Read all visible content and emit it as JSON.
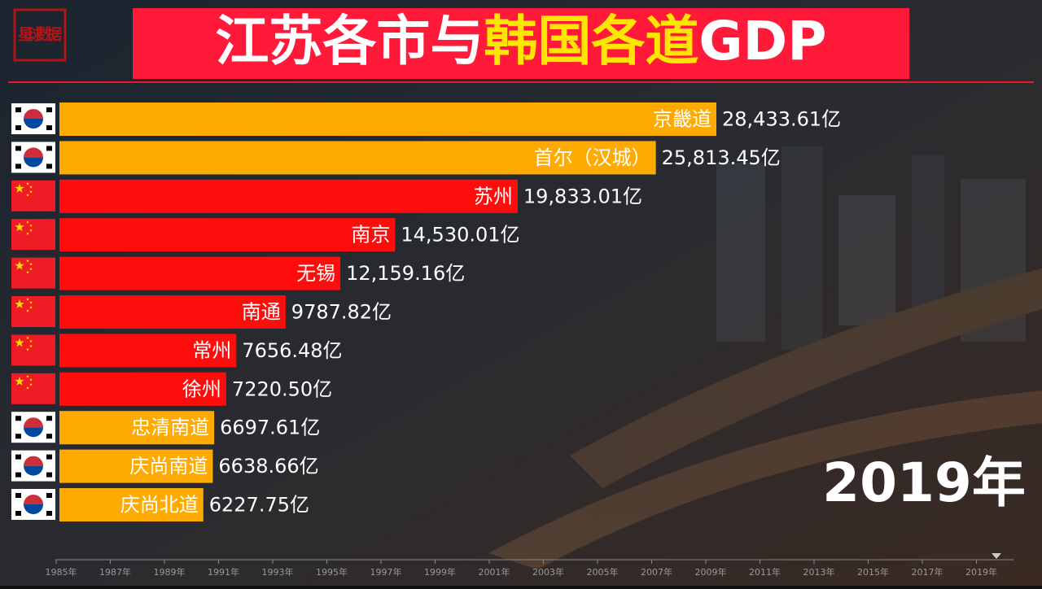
{
  "chart_data": {
    "type": "bar",
    "orientation": "horizontal",
    "title": [
      "江苏各市与",
      "韩国各道",
      "GDP"
    ],
    "title_colors": [
      "#ffffff",
      "#ffe600",
      "#ffffff"
    ],
    "logo": "星球数据",
    "categories": [
      "京畿道",
      "首尔（汉城）",
      "苏州",
      "南京",
      "无锡",
      "南通",
      "常州",
      "徐州",
      "忠清南道",
      "庆尚南道",
      "庆尚北道"
    ],
    "values": [
      28433.61,
      25813.45,
      19833.01,
      14530.01,
      12159.16,
      9787.82,
      7656.48,
      7220.5,
      6697.61,
      6638.66,
      6227.75
    ],
    "value_labels": [
      "28,433.61亿",
      "25,813.45亿",
      "19,833.01亿",
      "14,530.01亿",
      "12,159.16亿",
      "9787.82亿",
      "7656.48亿",
      "7220.50亿",
      "6697.61亿",
      "6638.66亿",
      "6227.75亿"
    ],
    "colors": [
      "#ffaa00",
      "#ffaa00",
      "#ff0d0d",
      "#ff0d0d",
      "#ff0d0d",
      "#ff0d0d",
      "#ff0d0d",
      "#ff0d0d",
      "#ffaa00",
      "#ffaa00",
      "#ffaa00"
    ],
    "xlim": [
      0,
      28433.61
    ],
    "annotation": "2019年",
    "timeline": [
      "1985年",
      "1987年",
      "1989年",
      "1991年",
      "1993年",
      "1995年",
      "1997年",
      "1999年",
      "2001年",
      "2003年",
      "2005年",
      "2007年",
      "2009年",
      "2011年",
      "2013年",
      "2015年",
      "2017年",
      "2019年"
    ]
  }
}
